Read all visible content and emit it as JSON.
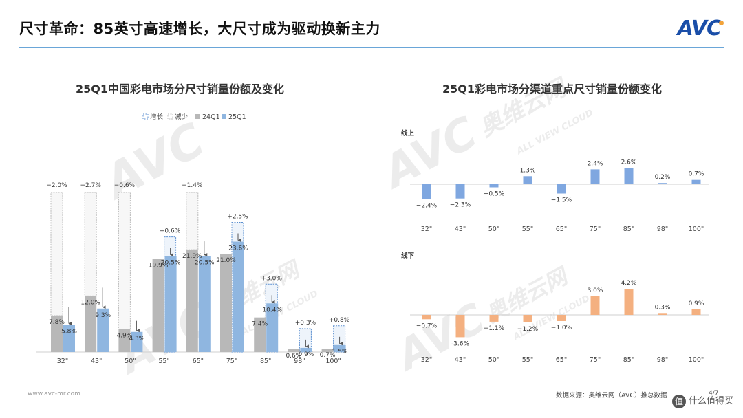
{
  "slide": {
    "title": "尺寸革命：85英寸高速增长，大尺寸成为驱动换新主力",
    "logo_text": "AVC",
    "footer_url": "www.avc-mr.com",
    "source": "数据来源：奥维云网（AVC）推总数据",
    "page": "4/7",
    "zdm_text": "什么值得买",
    "watermark": [
      "AVC",
      "奥维云网",
      "ALL VIEW CLOUD"
    ]
  },
  "chart_data": [
    {
      "id": "left",
      "type": "bar",
      "title": "25Q1中国彩电市场分尺寸销量份额及变化",
      "legend": [
        "增长",
        "减少",
        "24Q1",
        "25Q1"
      ],
      "categories": [
        "32\"",
        "43\"",
        "50\"",
        "55\"",
        "65\"",
        "75\"",
        "85\"",
        "98\"",
        "100\""
      ],
      "series": [
        {
          "name": "24Q1",
          "values": [
            7.8,
            12.0,
            4.9,
            19.9,
            21.9,
            21.0,
            7.4,
            0.6,
            0.7
          ],
          "labels": [
            "7.8%",
            "12.0%",
            "4.9%",
            "19.9%",
            "21.9%",
            "21.0%",
            "7.4%",
            "0.6%",
            "0.7%"
          ]
        },
        {
          "name": "25Q1",
          "values": [
            5.8,
            9.3,
            4.3,
            20.5,
            20.5,
            23.6,
            10.4,
            0.9,
            1.5
          ],
          "labels": [
            "5.8%",
            "9.3%",
            "4.3%",
            "20.5%",
            "20.5%",
            "23.6%",
            "10.4%",
            "0.9%",
            "1.5%"
          ]
        }
      ],
      "change": [
        -2.0,
        -2.7,
        -0.6,
        0.6,
        -1.4,
        2.5,
        3.0,
        0.3,
        0.8
      ],
      "change_labels": [
        "−2.0%",
        "−2.7%",
        "−0.6%",
        "+0.6%",
        "−1.4%",
        "+2.5%",
        "+3.0%",
        "+0.3%",
        "+0.8%"
      ],
      "colors": {
        "24Q1": "#b8b8b8",
        "25Q1": "#8fb6e0",
        "增长": "#5b8fd0",
        "减少": "#bbbbbb"
      }
    },
    {
      "id": "right",
      "type": "bar",
      "title": "25Q1彩电市场分渠道重点尺寸销量份额变化",
      "categories": [
        "32\"",
        "43\"",
        "50\"",
        "55\"",
        "65\"",
        "75\"",
        "85\"",
        "98\"",
        "100\""
      ],
      "series": [
        {
          "name": "线上",
          "values": [
            -2.4,
            -2.3,
            -0.5,
            1.3,
            -1.5,
            2.4,
            2.6,
            0.2,
            0.7
          ],
          "labels": [
            "−2.4%",
            "−2.3%",
            "−0.5%",
            "1.3%",
            "−1.5%",
            "2.4%",
            "2.6%",
            "0.2%",
            "0.7%"
          ],
          "color": "#7fa7e0"
        },
        {
          "name": "线下",
          "values": [
            -0.7,
            -3.6,
            -1.1,
            -1.2,
            -1.0,
            3.0,
            4.2,
            0.3,
            0.9
          ],
          "labels": [
            "−0.7%",
            "-3.6%",
            "−1.1%",
            "−1.2%",
            "−1.0%",
            "3.0%",
            "4.2%",
            "0.3%",
            "0.9%"
          ],
          "color": "#f4b080"
        }
      ]
    }
  ]
}
